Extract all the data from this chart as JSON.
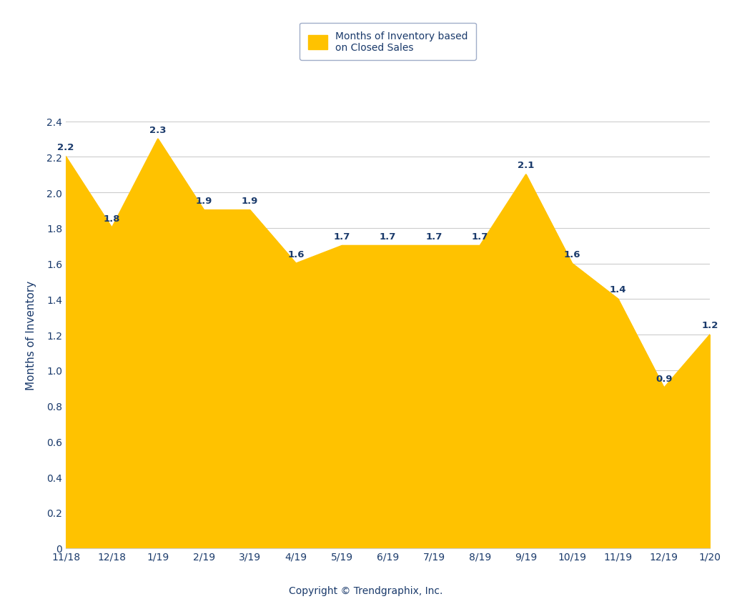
{
  "categories": [
    "11/18",
    "12/18",
    "1/19",
    "2/19",
    "3/19",
    "4/19",
    "5/19",
    "6/19",
    "7/19",
    "8/19",
    "9/19",
    "10/19",
    "11/19",
    "12/19",
    "1/20"
  ],
  "values": [
    2.2,
    1.8,
    2.3,
    1.9,
    1.9,
    1.6,
    1.7,
    1.7,
    1.7,
    1.7,
    2.1,
    1.6,
    1.4,
    0.9,
    1.2
  ],
  "fill_color": "#FFC200",
  "line_color": "#FFC200",
  "ylabel": "Months of Inventory",
  "copyright": "Copyright © Trendgraphix, Inc.",
  "ylim": [
    0,
    2.4
  ],
  "yticks": [
    0,
    0.2,
    0.4,
    0.6,
    0.8,
    1.0,
    1.2,
    1.4,
    1.6,
    1.8,
    2.0,
    2.2,
    2.4
  ],
  "legend_label": "Months of Inventory based\non Closed Sales",
  "legend_patch_color": "#FFC200",
  "background_color": "#ffffff",
  "grid_color": "#cccccc",
  "text_color": "#1a3a6b",
  "label_fontsize": 10,
  "ylabel_fontsize": 11,
  "copyright_fontsize": 10,
  "tick_fontsize": 10,
  "annotation_fontsize": 9.5,
  "legend_edge_color": "#8899bb",
  "xlim_left": 0,
  "xlim_right": 14
}
